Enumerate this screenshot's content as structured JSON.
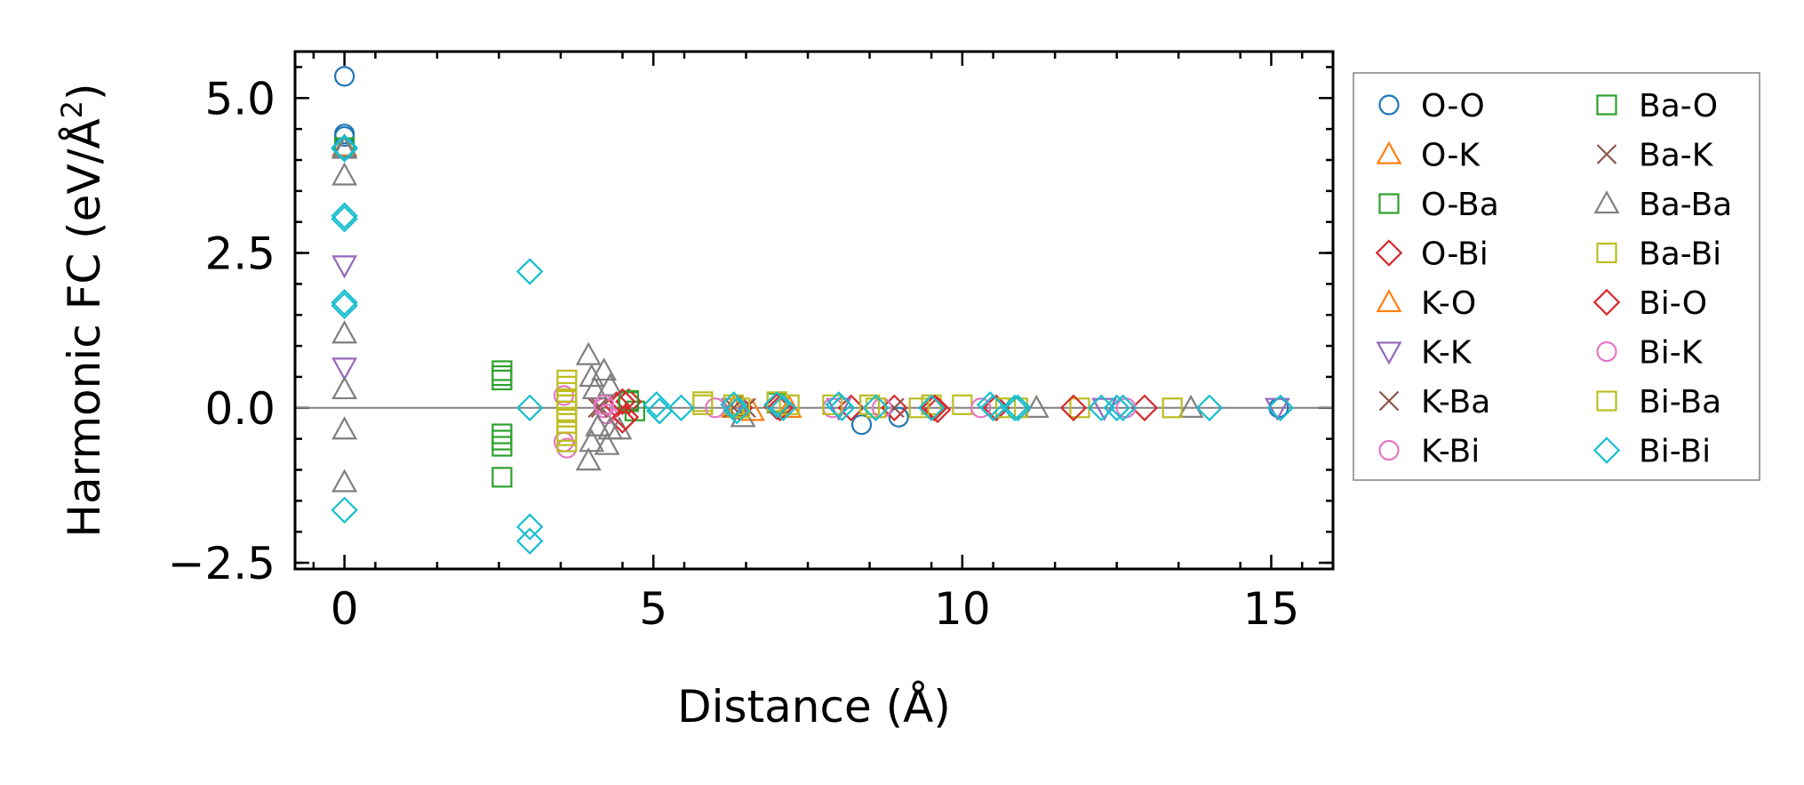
{
  "chart_data": {
    "type": "scatter",
    "xlabel": "Distance (Å)",
    "ylabel": "Harmonic FC (eV/Å",
    "ylabel_sup": "2",
    "ylabel_end": ")",
    "xlim": [
      -0.8,
      16
    ],
    "ylim": [
      -2.6,
      5.75
    ],
    "xticks": [
      0,
      5,
      10,
      15
    ],
    "xtick_labels": [
      "0",
      "5",
      "10",
      "15"
    ],
    "yticks": [
      -2.5,
      0.0,
      2.5,
      5.0
    ],
    "ytick_labels": [
      "−2.5",
      "0.0",
      "2.5",
      "5.0"
    ],
    "grid": false,
    "zero_line": true,
    "legend_position": "outside right",
    "legend_columns": 2,
    "series": [
      {
        "name": "O-O",
        "marker": "circle",
        "color": "#1f77b4",
        "x": [
          0,
          0,
          0,
          8.37,
          8.97,
          15.12
        ],
        "y": [
          5.35,
          4.42,
          4.38,
          -0.27,
          -0.15,
          0.0
        ]
      },
      {
        "name": "O-K",
        "marker": "triangle-up",
        "color": "#ff7f0e",
        "x": [
          0,
          6.3,
          6.6
        ],
        "y": [
          4.22,
          0.0,
          -0.05
        ]
      },
      {
        "name": "O-Ba",
        "marker": "square",
        "color": "#2ca02c",
        "x": [
          0,
          4.6,
          4.7,
          7.0
        ],
        "y": [
          4.2,
          0.1,
          -0.05,
          0.08
        ]
      },
      {
        "name": "O-Bi",
        "marker": "diamond",
        "color": "#d62728",
        "x": [
          4.4,
          4.5,
          4.6,
          6.4,
          7.0,
          8.2,
          8.9,
          9.5
        ],
        "y": [
          0.05,
          -0.2,
          0.1,
          0.0,
          0.02,
          0.0,
          0.0,
          0.0
        ]
      },
      {
        "name": "K-O",
        "marker": "triangle-up",
        "color": "#ff7f0e",
        "x": [
          0,
          6.35,
          7.2
        ],
        "y": [
          4.2,
          0.0,
          0.0
        ]
      },
      {
        "name": "K-K",
        "marker": "triangle-down",
        "color": "#9467bd",
        "x": [
          0,
          0,
          6.3,
          8.0,
          12.3,
          15.1
        ],
        "y": [
          2.3,
          0.65,
          0.0,
          0.0,
          0.0,
          0.0
        ]
      },
      {
        "name": "K-Ba",
        "marker": "x",
        "color": "#8c564b",
        "x": [
          4.15,
          6.3,
          8.9
        ],
        "y": [
          0.0,
          0.0,
          0.0
        ]
      },
      {
        "name": "K-Bi",
        "marker": "circle",
        "color": "#e377c2",
        "x": [
          3.55,
          3.55,
          3.6,
          4.2,
          4.25,
          7.9
        ],
        "y": [
          0.2,
          -0.55,
          -0.65,
          0.0,
          -0.1,
          0.0
        ]
      },
      {
        "name": "Ba-O",
        "marker": "square",
        "color": "#2ca02c",
        "x": [
          2.55,
          2.55,
          2.55,
          2.55,
          2.55,
          2.55,
          2.55,
          4.6
        ],
        "y": [
          0.6,
          0.52,
          0.45,
          -0.42,
          -0.52,
          -0.62,
          -1.12,
          0.12
        ]
      },
      {
        "name": "Ba-K",
        "marker": "x",
        "color": "#8c564b",
        "x": [
          4.1,
          6.5
        ],
        "y": [
          0.0,
          0.0
        ]
      },
      {
        "name": "Ba-Ba",
        "marker": "triangle-up",
        "color": "#7f7f7f",
        "x": [
          0,
          0,
          0,
          0,
          0,
          0,
          0,
          3.95,
          3.95,
          4.0,
          4.0,
          4.05,
          4.1,
          4.2,
          4.25,
          4.3,
          4.3,
          4.45,
          6.45,
          11.2,
          13.7
        ],
        "y": [
          4.2,
          3.75,
          1.2,
          0.3,
          -0.35,
          -1.2,
          4.18,
          0.85,
          -0.85,
          0.5,
          -0.55,
          0.3,
          -0.3,
          0.6,
          -0.6,
          0.35,
          -0.35,
          -0.35,
          -0.15,
          0.0,
          0.0
        ]
      },
      {
        "name": "Ba-Bi",
        "marker": "square",
        "color": "#bcbd22",
        "x": [
          3.6,
          3.6,
          3.6,
          3.6,
          3.6,
          3.6,
          3.6,
          3.6,
          3.6,
          3.6,
          3.6,
          5.8,
          6.3,
          7.0,
          7.9,
          8.5,
          9.5,
          10.0,
          10.9,
          11.9,
          13.4
        ],
        "y": [
          0.45,
          0.35,
          0.25,
          0.12,
          0.05,
          -0.05,
          -0.15,
          -0.25,
          -0.38,
          -0.45,
          -0.55,
          0.1,
          0.05,
          0.1,
          0.05,
          0.05,
          0.05,
          0.05,
          0.0,
          0.0,
          0.0
        ]
      },
      {
        "name": "Bi-O",
        "marker": "diamond",
        "color": "#d62728",
        "x": [
          4.5,
          4.55,
          7.05,
          9.55,
          9.6,
          10.55,
          11.8,
          12.95
        ],
        "y": [
          0.1,
          -0.15,
          0.0,
          0.0,
          -0.03,
          0.0,
          0.0,
          0.0
        ]
      },
      {
        "name": "Bi-K",
        "marker": "circle",
        "color": "#e377c2",
        "x": [
          4.2,
          6.0,
          8.7,
          10.3,
          12.65
        ],
        "y": [
          0.05,
          0.0,
          0.0,
          0.0,
          0.0
        ]
      },
      {
        "name": "Bi-Ba",
        "marker": "square",
        "color": "#bcbd22",
        "x": [
          5.8,
          6.4,
          7.2,
          8.6,
          9.3,
          10.7
        ],
        "y": [
          0.05,
          0.0,
          0.05,
          0.0,
          0.0,
          0.0
        ]
      },
      {
        "name": "Bi-Bi",
        "marker": "diamond",
        "color": "#17becf",
        "x": [
          0,
          0,
          0,
          0,
          0,
          0,
          0,
          3.0,
          3.0,
          3.0,
          3.0,
          5.05,
          5.1,
          5.45,
          6.3,
          6.35,
          7.0,
          7.1,
          8.0,
          8.05,
          8.6,
          9.5,
          10.45,
          10.5,
          10.85,
          10.9,
          12.25,
          12.5,
          12.6,
          14.0,
          15.15
        ],
        "y": [
          4.2,
          3.1,
          3.05,
          1.7,
          1.65,
          -1.65,
          4.18,
          2.2,
          0.0,
          -1.92,
          -2.15,
          0.05,
          -0.05,
          0.0,
          0.05,
          -0.05,
          0.05,
          0.0,
          0.05,
          0.0,
          0.0,
          0.0,
          0.05,
          0.0,
          0.0,
          0.0,
          0.0,
          0.0,
          0.0,
          0.0,
          0.0
        ]
      }
    ]
  }
}
